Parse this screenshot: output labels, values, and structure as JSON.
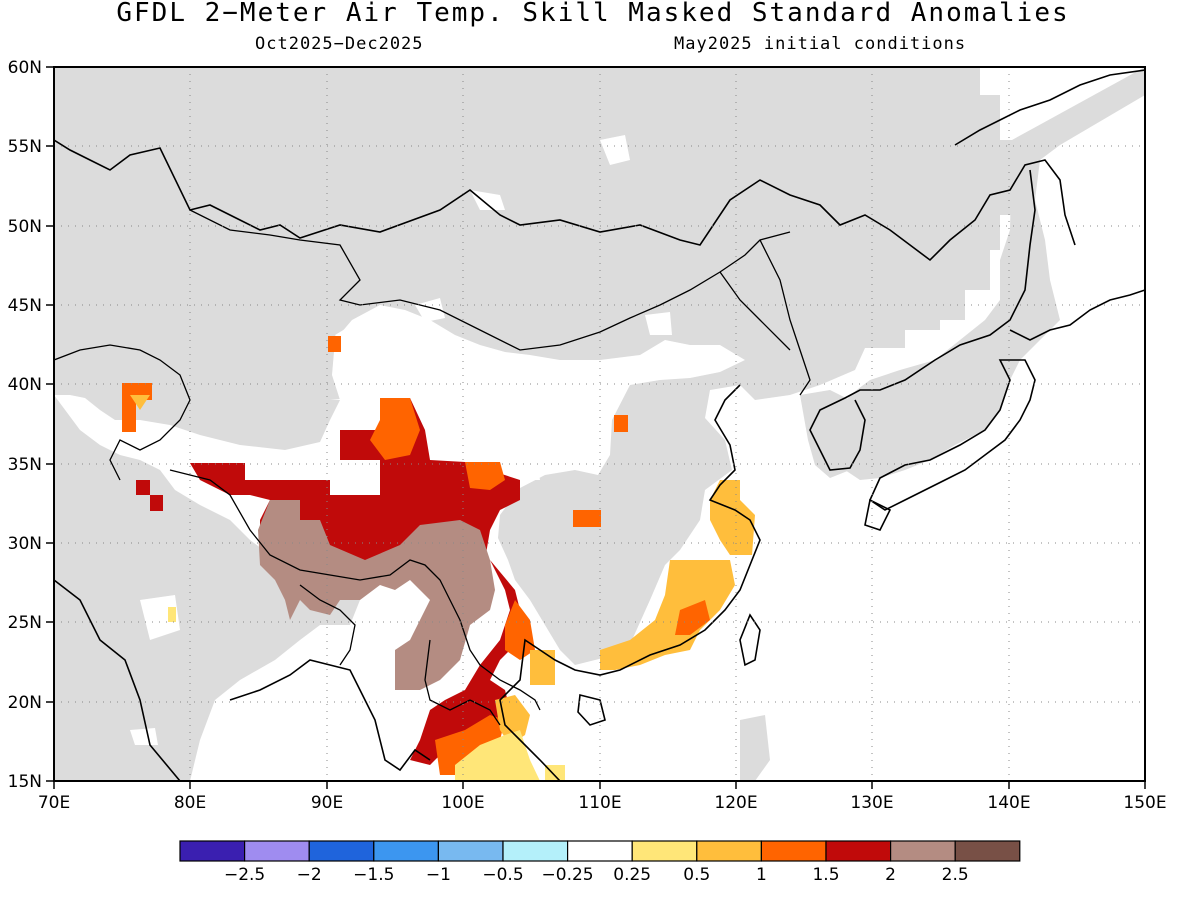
{
  "title": "GFDL 2−Meter Air Temp. Skill Masked Standard Anomalies",
  "subtitle_left": "Oct2025−Dec2025",
  "subtitle_right": "May2025 initial conditions",
  "map": {
    "lon_range": [
      70,
      150
    ],
    "lat_range": [
      15,
      60
    ],
    "grid": "dotted",
    "land_masked_color": "#dcdcdc",
    "ocean_color": "#ffffff",
    "coast_color": "#000000"
  },
  "axes": {
    "y_ticks": [
      "60N",
      "55N",
      "50N",
      "45N",
      "40N",
      "35N",
      "30N",
      "25N",
      "20N",
      "15N"
    ],
    "x_ticks": [
      "70E",
      "80E",
      "90E",
      "100E",
      "110E",
      "120E",
      "130E",
      "140E",
      "150E"
    ]
  },
  "colorbar": {
    "colors": [
      "#3a1fb0",
      "#9f8cf0",
      "#1f64dc",
      "#3c96f0",
      "#78b9f0",
      "#b4f0fa",
      "#ffffff",
      "#ffe678",
      "#ffbe3c",
      "#ff6400",
      "#c00a0a",
      "#b48c82",
      "#785046"
    ],
    "labels": [
      "−2.5",
      "−2",
      "−1.5",
      "−1",
      "−0.5",
      "−0.25",
      "0.25",
      "0.5",
      "1",
      "1.5",
      "2",
      "2.5"
    ]
  },
  "anomaly_regions": [
    {
      "name": "tibet-red",
      "color": "#c00a0a"
    },
    {
      "name": "tibet-brown",
      "color": "#b48c82"
    },
    {
      "name": "indochina-red",
      "color": "#c00a0a"
    },
    {
      "name": "indochina-orange",
      "color": "#ff6400"
    },
    {
      "name": "indochina-yellow",
      "color": "#ffe678"
    },
    {
      "name": "se-china-gold",
      "color": "#ffbe3c"
    },
    {
      "name": "se-china-orange",
      "color": "#ff6400"
    },
    {
      "name": "qaidam-orange",
      "color": "#ff6400"
    },
    {
      "name": "central-china-orange",
      "color": "#ff6400"
    }
  ]
}
